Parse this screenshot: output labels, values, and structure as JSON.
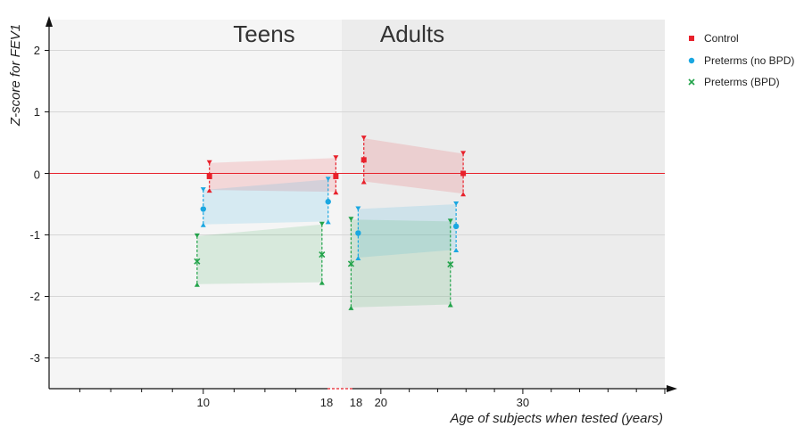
{
  "chart_data": {
    "type": "line",
    "xlabel": "Age of subjects when tested (years)",
    "ylabel": "Z-score for FEV1",
    "xlim": [
      0,
      40
    ],
    "ylim": [
      -3.5,
      2.5
    ],
    "x_ticks": [
      "10",
      "20",
      "30"
    ],
    "x_tick_values": [
      10,
      20,
      30
    ],
    "y_ticks": [
      "-3",
      "-2",
      "-1",
      "0",
      "1",
      "2"
    ],
    "y_tick_values": [
      -3,
      -2,
      -1,
      0,
      1,
      2
    ],
    "zero_line_color": "#e8212b",
    "break_labels": [
      "18",
      "18"
    ],
    "regions": [
      {
        "label": "Teens",
        "x_range": [
          0,
          18
        ]
      },
      {
        "label": "Adults",
        "x_range": [
          18,
          40
        ]
      }
    ],
    "legend_position": "right",
    "series": [
      {
        "name": "Control",
        "color": "#e8212b",
        "marker": "square",
        "points": [
          {
            "x": 10.4,
            "mean": -0.05,
            "upper": 0.17,
            "lower": -0.27
          },
          {
            "x": 18.6,
            "mean": -0.05,
            "upper": 0.25,
            "lower": -0.3
          },
          {
            "x": 18.8,
            "mean": 0.22,
            "upper": 0.57,
            "lower": -0.13
          },
          {
            "x": 25.8,
            "mean": 0.0,
            "upper": 0.32,
            "lower": -0.33
          }
        ]
      },
      {
        "name": "Preterms (no BPD)",
        "color": "#1aa7e1",
        "marker": "circle",
        "points": [
          {
            "x": 10.0,
            "mean": -0.58,
            "upper": -0.27,
            "lower": -0.83
          },
          {
            "x": 18.1,
            "mean": -0.46,
            "upper": -0.1,
            "lower": -0.78
          },
          {
            "x": 18.4,
            "mean": -0.97,
            "upper": -0.58,
            "lower": -1.37
          },
          {
            "x": 25.3,
            "mean": -0.86,
            "upper": -0.5,
            "lower": -1.24
          }
        ]
      },
      {
        "name": "Preterms (BPD)",
        "color": "#22a34a",
        "marker": "x",
        "points": [
          {
            "x": 9.6,
            "mean": -1.43,
            "upper": -1.02,
            "lower": -1.8
          },
          {
            "x": 17.7,
            "mean": -1.32,
            "upper": -0.83,
            "lower": -1.77
          },
          {
            "x": 17.9,
            "mean": -1.47,
            "upper": -0.75,
            "lower": -2.18
          },
          {
            "x": 24.9,
            "mean": -1.48,
            "upper": -0.78,
            "lower": -2.13
          }
        ]
      }
    ]
  }
}
